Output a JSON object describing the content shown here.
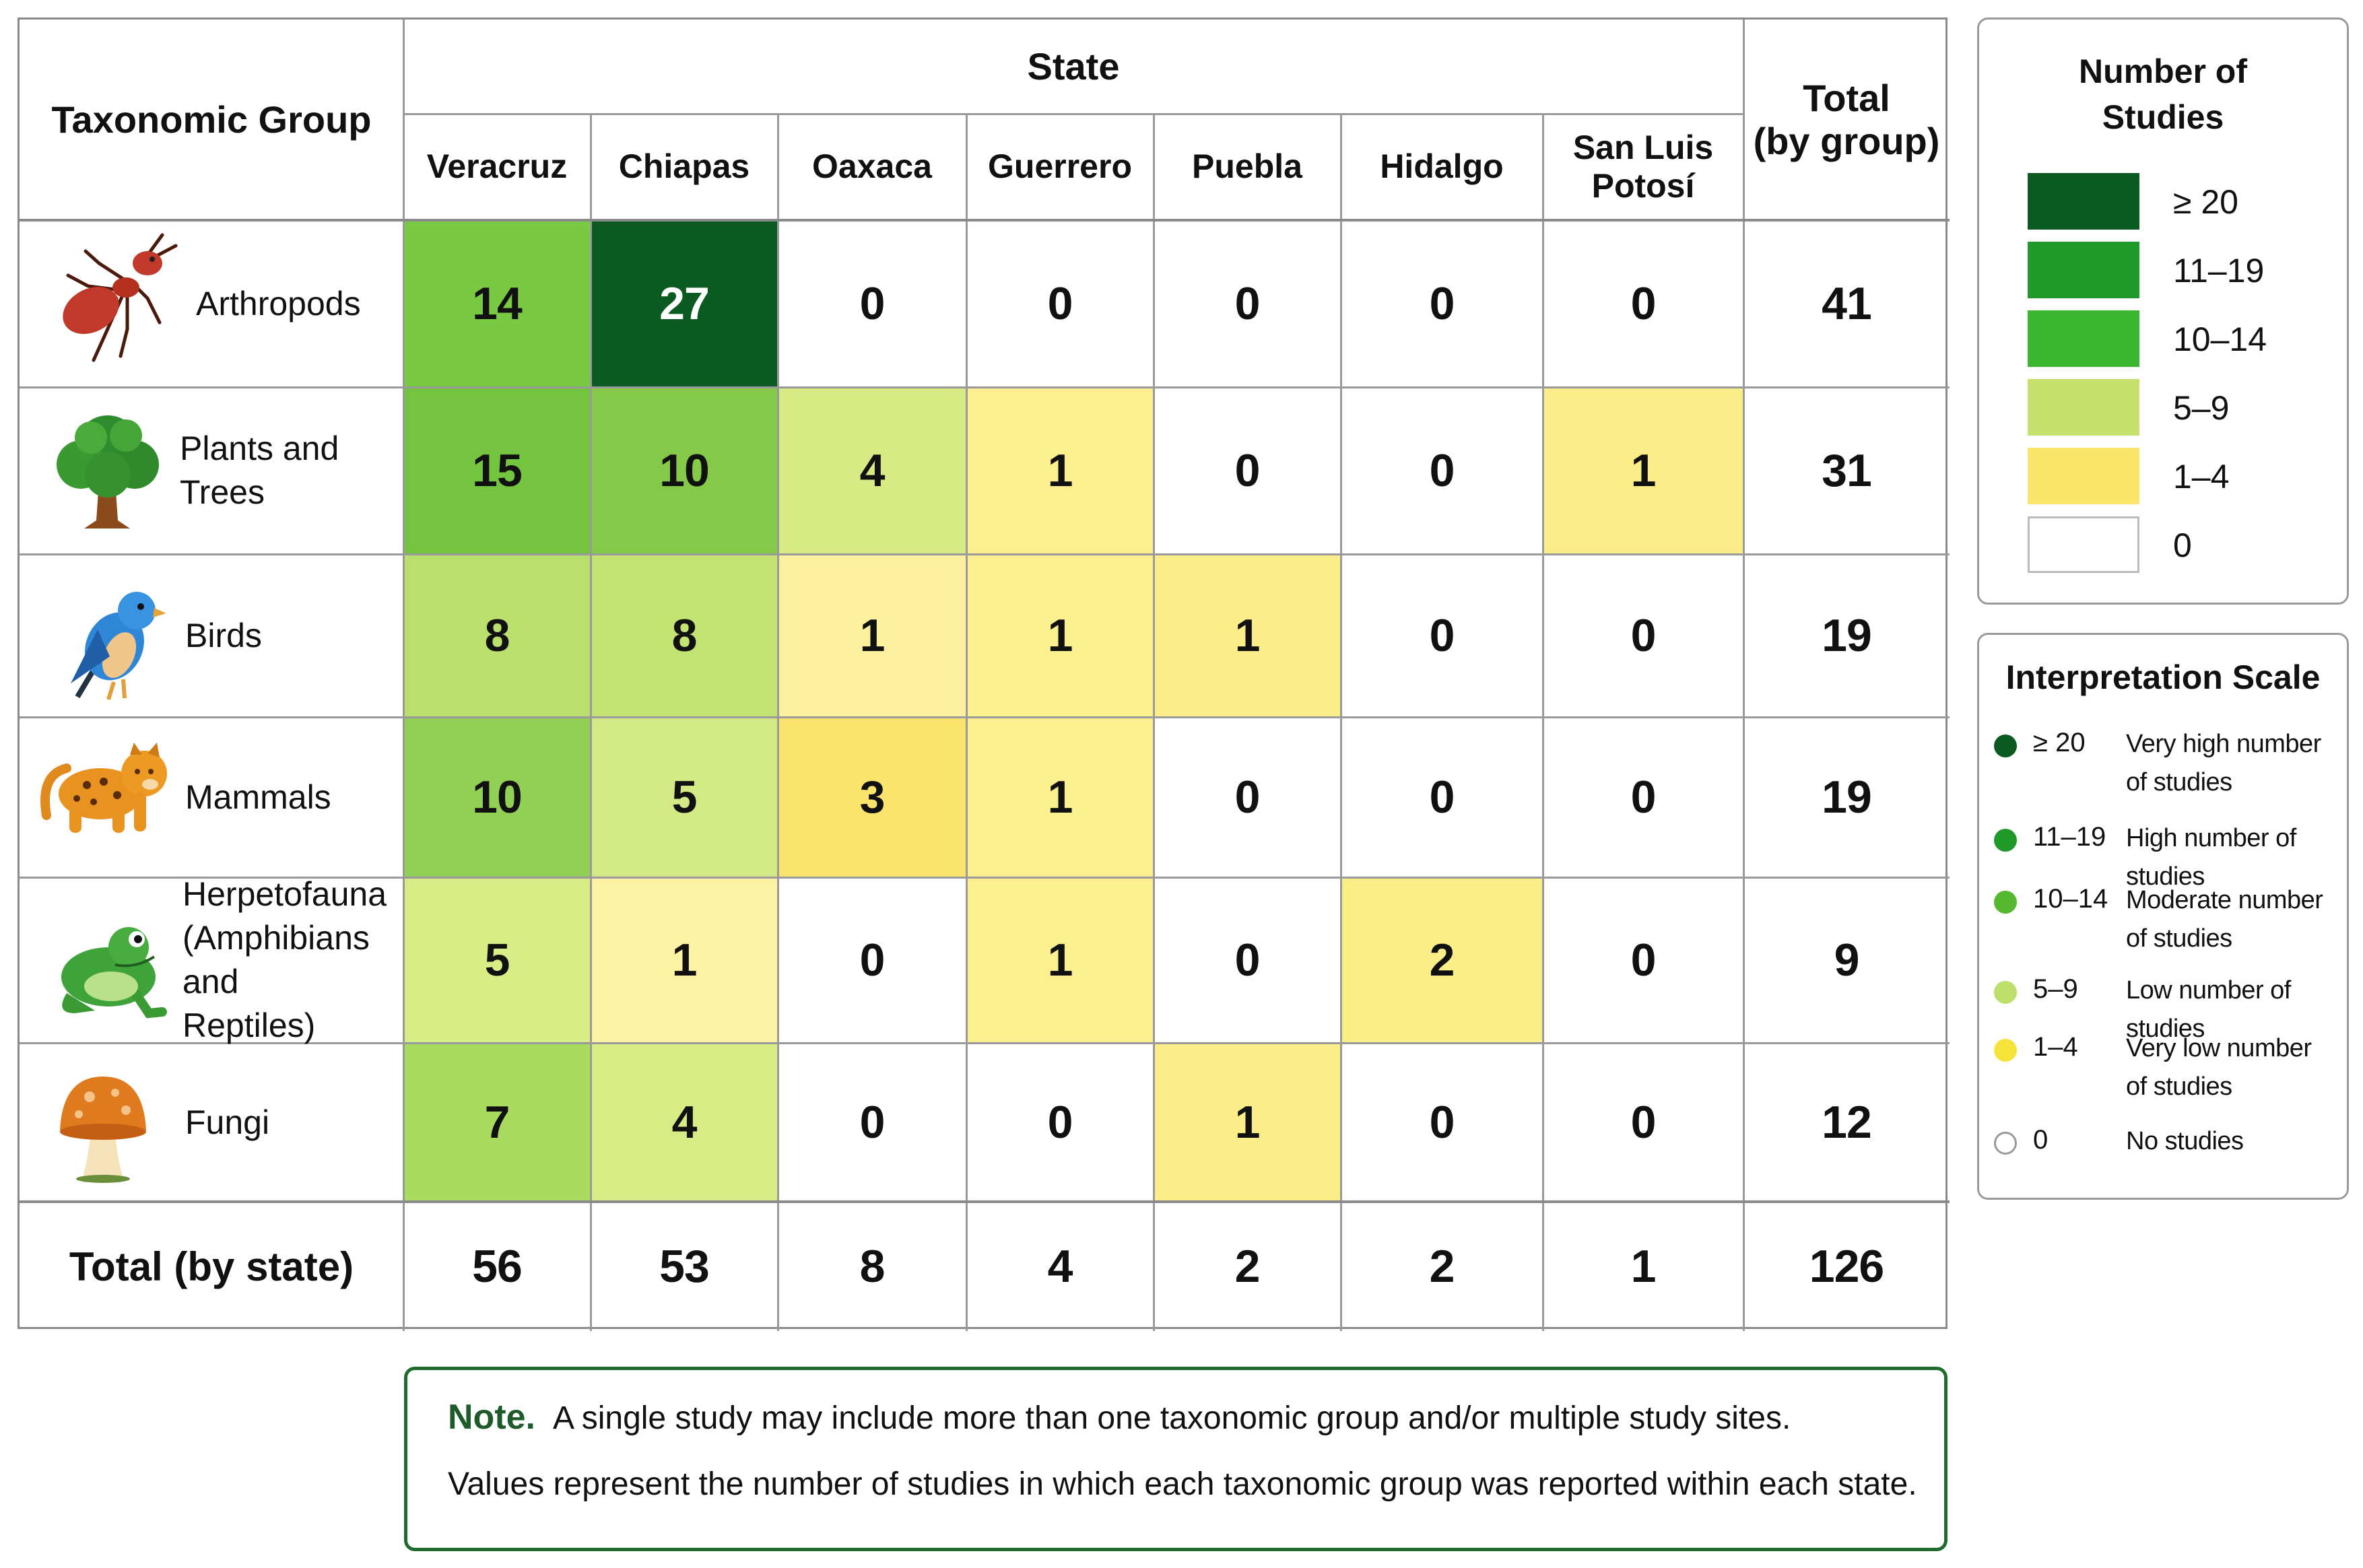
{
  "chart_data": {
    "type": "heatmap",
    "header": {
      "group_col": "Taxonomic Group",
      "state_super": "State",
      "total_col": [
        "Total",
        "(by group)"
      ]
    },
    "states": [
      "Veracruz",
      "Chiapas",
      "Oaxaca",
      "Guerrero",
      "Puebla",
      "Hidalgo",
      [
        "San Luis",
        "Potosí"
      ]
    ],
    "groups": [
      {
        "label": [
          "Arthropods"
        ],
        "icon": "ant-icon",
        "values": [
          14,
          27,
          0,
          0,
          0,
          0,
          0
        ],
        "total": 41
      },
      {
        "label": [
          "Plants and Trees"
        ],
        "icon": "tree-icon",
        "values": [
          15,
          10,
          4,
          1,
          0,
          0,
          1
        ],
        "total": 31
      },
      {
        "label": [
          "Birds"
        ],
        "icon": "bird-icon",
        "values": [
          8,
          8,
          1,
          1,
          1,
          0,
          0
        ],
        "total": 19
      },
      {
        "label": [
          "Mammals"
        ],
        "icon": "jaguar-icon",
        "values": [
          10,
          5,
          3,
          1,
          0,
          0,
          0
        ],
        "total": 19
      },
      {
        "label": [
          "Herpetofauna",
          "(Amphibians and",
          "Reptiles)"
        ],
        "icon": "frog-icon",
        "values": [
          5,
          1,
          0,
          1,
          0,
          2,
          0
        ],
        "total": 9
      },
      {
        "label": [
          "Fungi"
        ],
        "icon": "mushroom-icon",
        "values": [
          7,
          4,
          0,
          0,
          1,
          0,
          0
        ],
        "total": 12
      }
    ],
    "row_total_label": "Total (by state)",
    "state_totals": [
      56,
      53,
      8,
      4,
      2,
      2,
      1
    ],
    "grand_total": 126,
    "colors": {
      "Arthropods": [
        "#7ac943",
        "#0a5a22",
        null,
        null,
        null,
        null,
        null
      ],
      "Plants and Trees": [
        "#74c440",
        "#84c947",
        "#d8ea83",
        "#fbef90",
        null,
        null,
        "#fbee88"
      ],
      "Birds": [
        "#b9df6c",
        "#c3e373",
        "#fcef9d",
        "#fbef90",
        "#fbee88",
        null,
        null
      ],
      "Mammals": [
        "#91d054",
        "#d2e986",
        "#fbe46e",
        "#fbef90",
        null,
        null,
        null
      ],
      "Herpetofauna": [
        "#d9ed86",
        "#fdf1a3",
        null,
        "#fbef90",
        null,
        "#fbee86",
        null
      ],
      "Fungi": [
        "#a9db5e",
        "#d7ec84",
        null,
        null,
        "#fbee88",
        null,
        null
      ]
    }
  },
  "legend_studies": {
    "title": [
      "Number of",
      "Studies"
    ],
    "items": [
      {
        "label": "≥ 20",
        "color": "#0a5a22"
      },
      {
        "label": "11–19",
        "color": "#1f9a2a"
      },
      {
        "label": "10–14",
        "color": "#3cb52f"
      },
      {
        "label": "5–9",
        "color": "#c7e26c"
      },
      {
        "label": "1–4",
        "color": "#fbe46a"
      },
      {
        "label": "0",
        "color": "#ffffff"
      }
    ]
  },
  "legend_interp": {
    "title": "Interpretation Scale",
    "items": [
      {
        "range": "≥ 20",
        "desc": [
          "Very high number",
          "of studies"
        ],
        "color": "#0a5a22"
      },
      {
        "range": "11–19",
        "desc": [
          "High number of studies"
        ],
        "color": "#1f9a2a"
      },
      {
        "range": "10–14",
        "desc": [
          "Moderate number",
          "of studies"
        ],
        "color": "#55b82e"
      },
      {
        "range": "5–9",
        "desc": [
          "Low number of studies"
        ],
        "color": "#bde06a"
      },
      {
        "range": "1–4",
        "desc": [
          "Very low number",
          "of studies"
        ],
        "color": "#f6e33a"
      },
      {
        "range": "0",
        "desc": [
          "No studies"
        ],
        "color": "#ffffff"
      }
    ]
  },
  "note": {
    "label": "Note.",
    "line1": "A single study may include more than one taxonomic group and/or multiple study sites.",
    "line2": "Values represent the number of studies in which each taxonomic group was reported within each state."
  }
}
